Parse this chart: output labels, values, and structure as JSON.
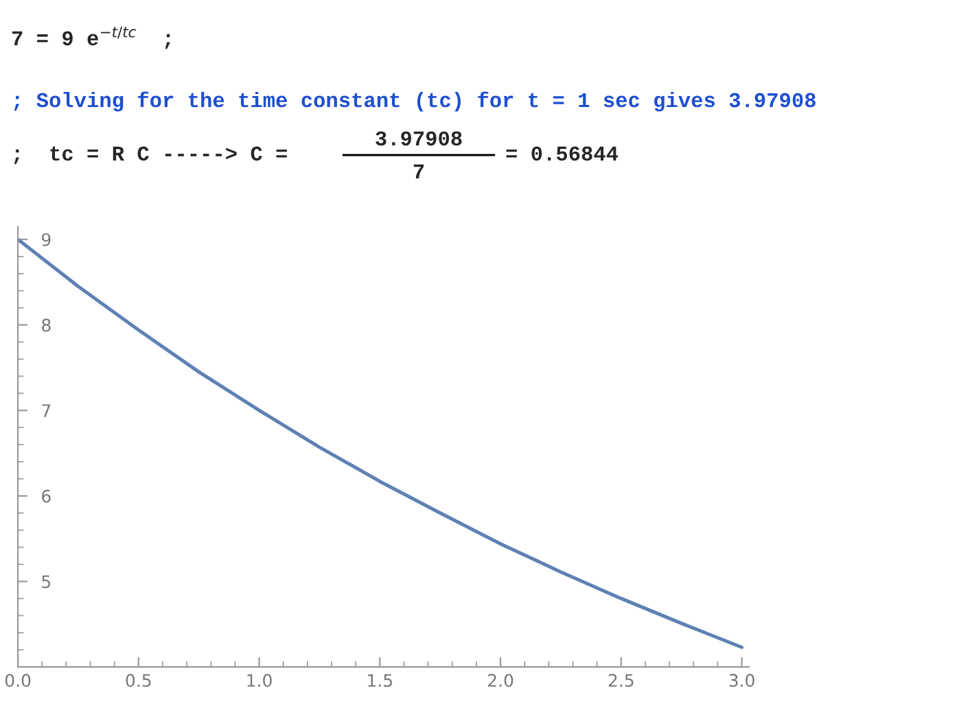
{
  "chart_data": {
    "type": "line",
    "annotations": [
      "7 = 9 e$^{−t/tc}$  ;",
      "; Solving for the time constant (tc) for t = 1 sec gives 3.97908",
      ";  tc = R C -----> C =",
      "3.97908",
      "7",
      "= 0.56844"
    ],
    "x": [
      0,
      0.25,
      0.5,
      0.75,
      1.0,
      1.25,
      1.5,
      1.75,
      2.0,
      2.25,
      2.5,
      2.75,
      3.0
    ],
    "series": [
      {
        "color": "#5e81b5",
        "values": [
          9.0,
          8.45,
          7.94,
          7.45,
          7.0,
          6.57,
          6.17,
          5.8,
          5.44,
          5.11,
          4.8,
          4.51,
          4.23
        ]
      }
    ],
    "xlim": [
      0,
      3.03
    ],
    "ylim": [
      4.0,
      9.15
    ],
    "xticks": [
      {
        "value": 0,
        "label": "0.0"
      },
      0.5,
      {
        "value": 1,
        "label": "1.0"
      },
      1.5,
      {
        "value": 2,
        "label": "2.0"
      },
      2.5,
      {
        "value": 3,
        "label": "3.0"
      }
    ],
    "yticks": [
      5,
      6,
      7,
      8,
      9
    ],
    "grid": false,
    "legend": false,
    "marker": "none",
    "line_style": "solid"
  }
}
